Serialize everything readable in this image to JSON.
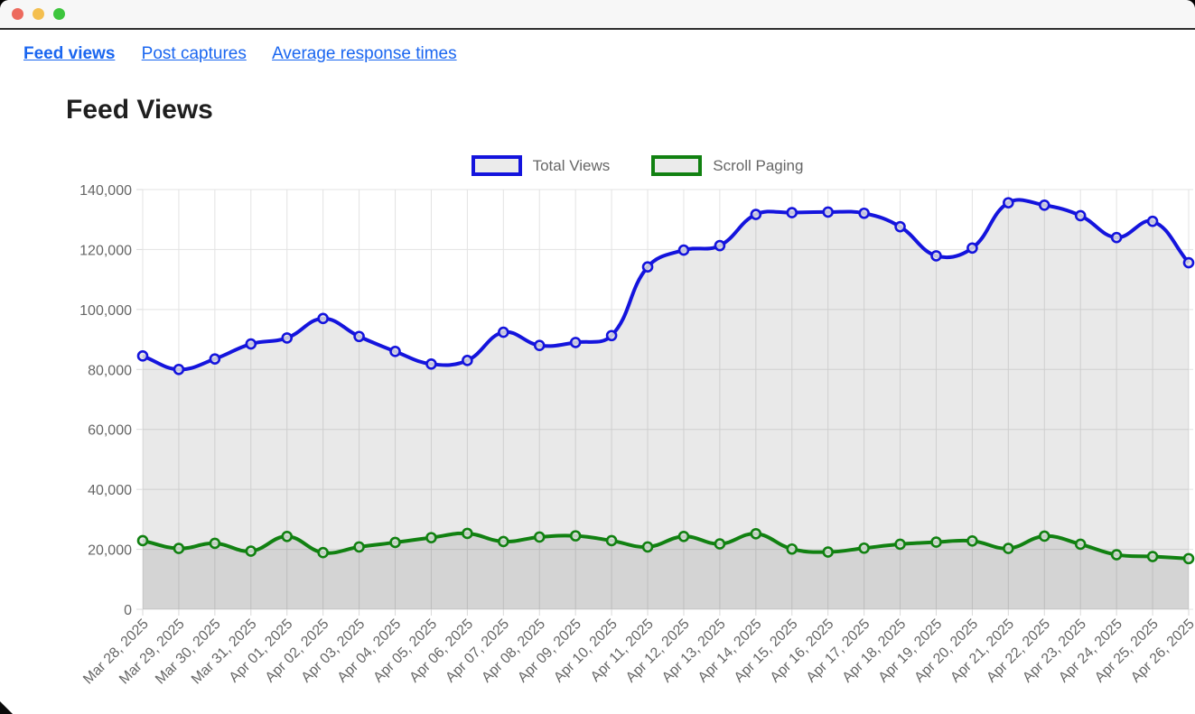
{
  "window": {
    "controls": {
      "close": "close",
      "minimize": "minimize",
      "maximize": "maximize"
    }
  },
  "nav": {
    "items": [
      {
        "label": "Feed views",
        "active": true
      },
      {
        "label": "Post captures",
        "active": false
      },
      {
        "label": "Average response times",
        "active": false
      }
    ]
  },
  "page": {
    "title": "Feed Views"
  },
  "colors": {
    "link_blue": "#1a66f0",
    "series_blue": "#1414dd",
    "series_green": "#118111",
    "series_fill": "rgba(0,0,0,0.085)",
    "legend_box_fill": "#ebebeb",
    "grid_line": "#e3e3e3",
    "tick_text": "#666666",
    "traffic_red": "#ed6a5e",
    "traffic_yellow": "#f4bf4f",
    "traffic_green": "#3dc53d"
  },
  "chart_data": {
    "type": "line",
    "title": "Feed Views",
    "x": [
      "Mar 28, 2025",
      "Mar 29, 2025",
      "Mar 30, 2025",
      "Mar 31, 2025",
      "Apr 01, 2025",
      "Apr 02, 2025",
      "Apr 03, 2025",
      "Apr 04, 2025",
      "Apr 05, 2025",
      "Apr 06, 2025",
      "Apr 07, 2025",
      "Apr 08, 2025",
      "Apr 09, 2025",
      "Apr 10, 2025",
      "Apr 11, 2025",
      "Apr 12, 2025",
      "Apr 13, 2025",
      "Apr 14, 2025",
      "Apr 15, 2025",
      "Apr 16, 2025",
      "Apr 17, 2025",
      "Apr 18, 2025",
      "Apr 19, 2025",
      "Apr 20, 2025",
      "Apr 21, 2025",
      "Apr 22, 2025",
      "Apr 23, 2025",
      "Apr 24, 2025",
      "Apr 25, 2025",
      "Apr 26, 2025"
    ],
    "series": [
      {
        "name": "Total Views",
        "color": "#1414dd",
        "values": [
          84500,
          80000,
          83500,
          88500,
          90500,
          97000,
          91000,
          86000,
          81800,
          83000,
          92400,
          88000,
          89000,
          91300,
          114200,
          119800,
          121300,
          131700,
          132300,
          132500,
          132100,
          127600,
          117900,
          120500,
          135600,
          134800,
          131300,
          124000,
          129400,
          115600
        ]
      },
      {
        "name": "Scroll Paging",
        "color": "#118111",
        "values": [
          22900,
          20300,
          22000,
          19400,
          24300,
          18900,
          20800,
          22300,
          23900,
          25300,
          22600,
          24100,
          24500,
          22900,
          20800,
          24300,
          21800,
          25200,
          20100,
          19100,
          20400,
          21700,
          22400,
          22800,
          20300,
          24400,
          21700,
          18200,
          17600,
          16900
        ]
      }
    ],
    "ylim": [
      0,
      140000
    ],
    "ytick_step": 20000,
    "ytick_labels": [
      "0",
      "20,000",
      "40,000",
      "60,000",
      "80,000",
      "100,000",
      "120,000",
      "140,000"
    ],
    "xlabel": "",
    "ylabel": "",
    "grid": true,
    "legend_position": "top",
    "fill": "translucent-gray-to-zero",
    "point_style": "open-circle",
    "x_tick_rotation": -45
  }
}
